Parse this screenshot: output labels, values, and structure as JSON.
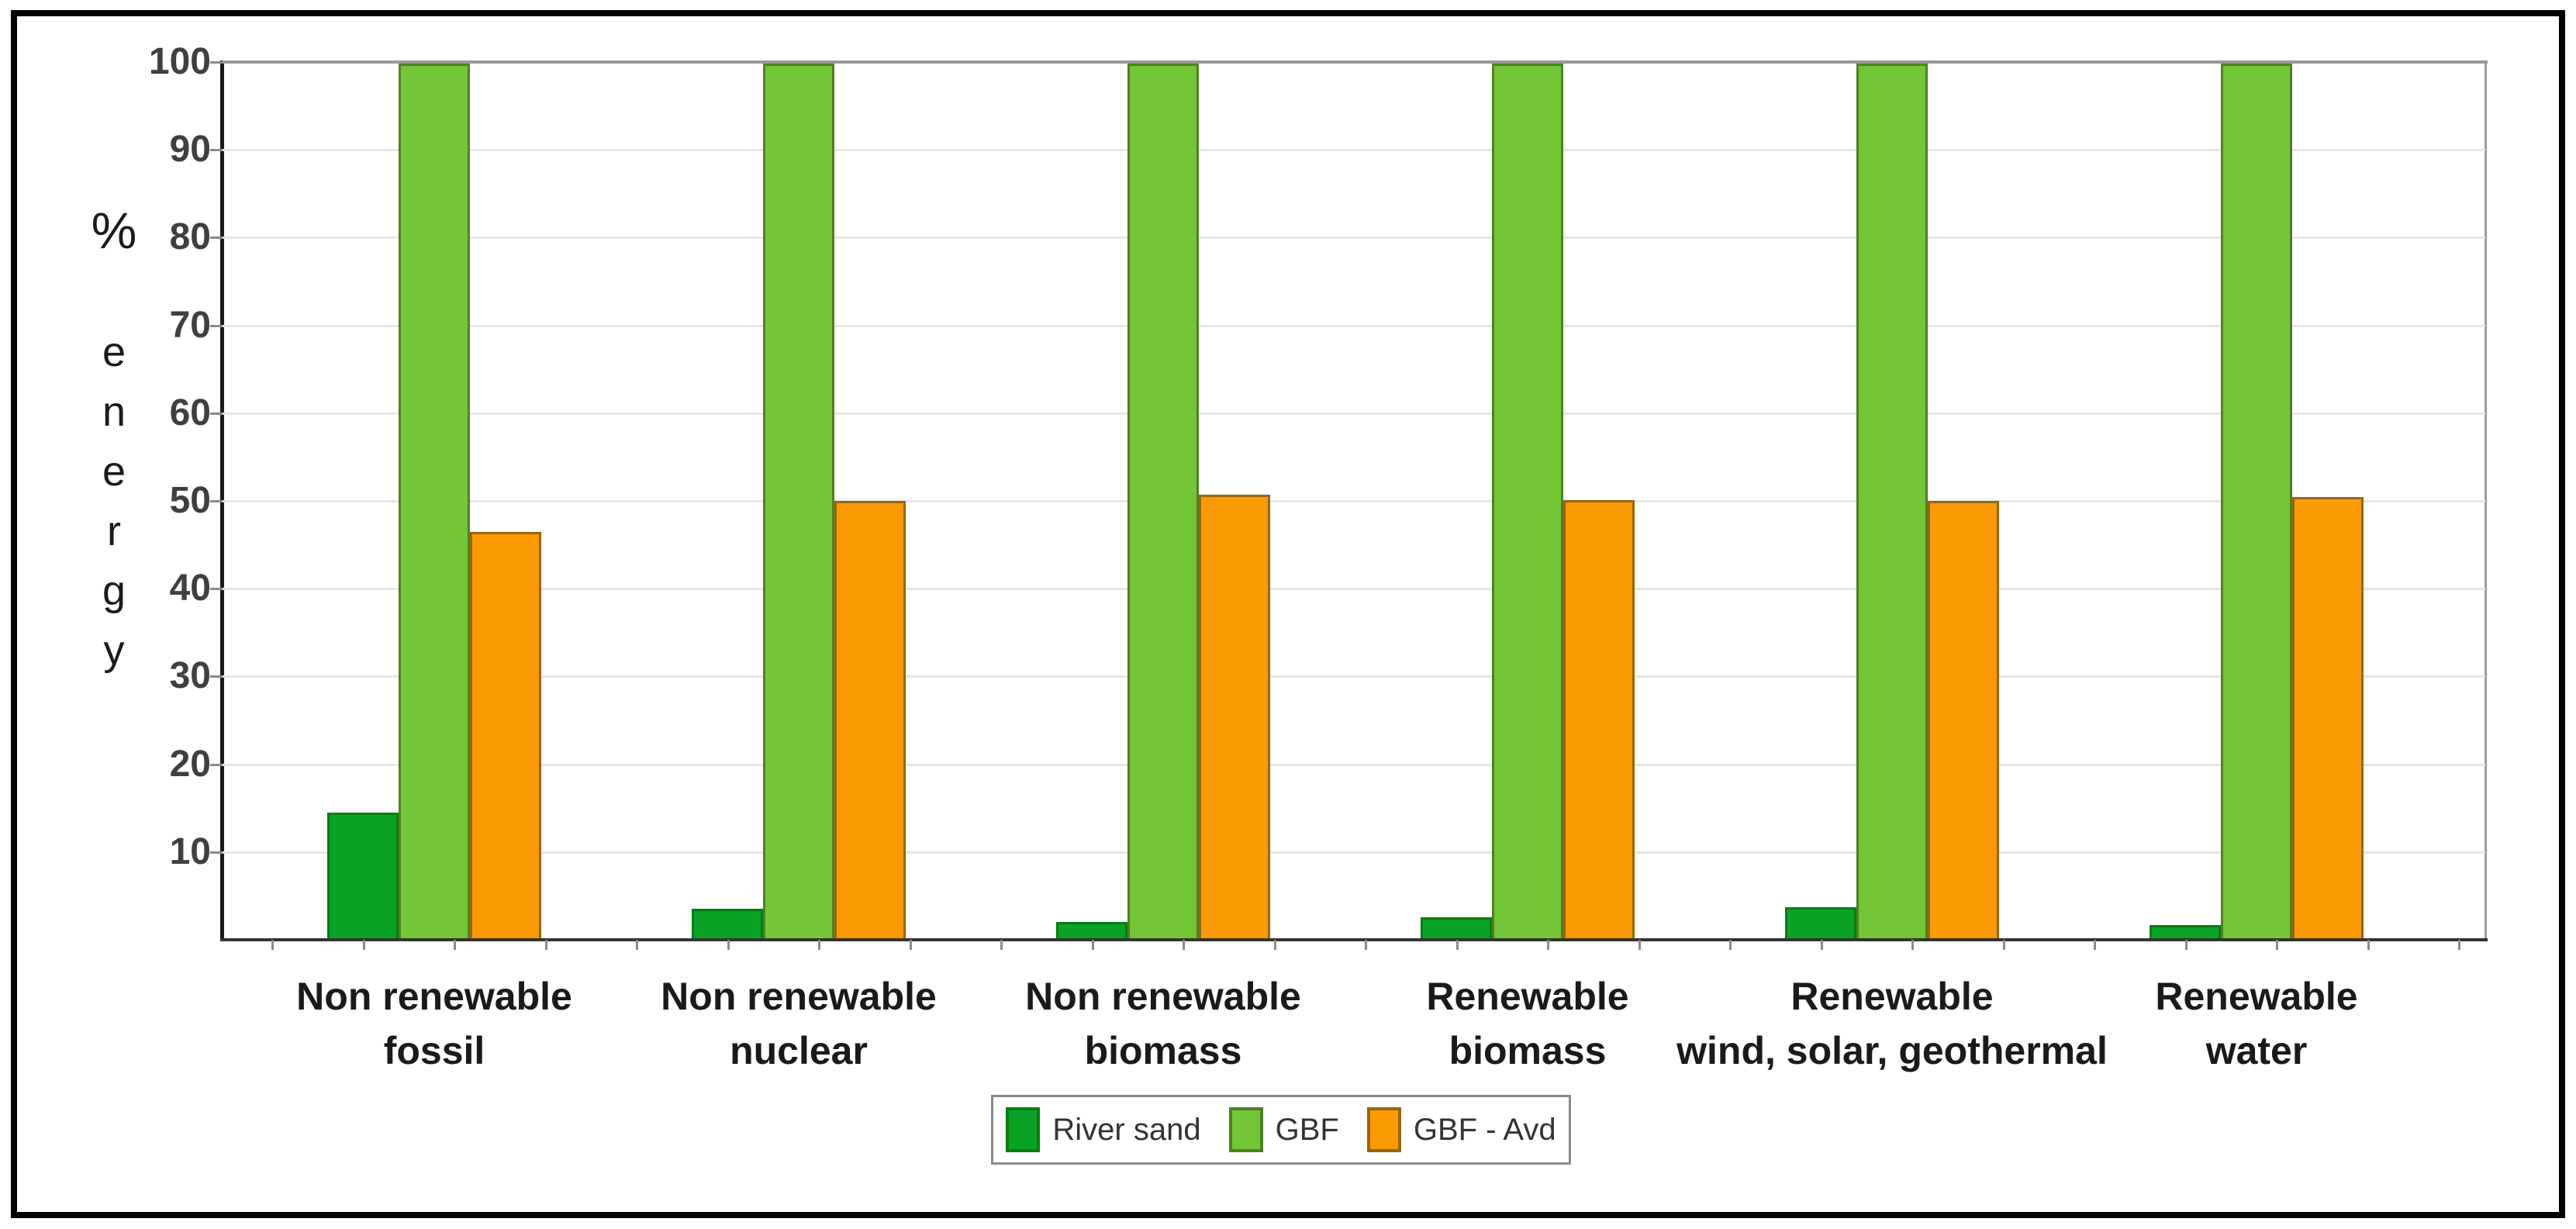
{
  "figure": {
    "background": "#FFFFFF",
    "border_color": "#000000"
  },
  "chart_data": {
    "type": "bar",
    "title": "",
    "ylabel": "% energy",
    "ylabel_stacked": [
      "%",
      "e",
      "n",
      "e",
      "r",
      "g",
      "y"
    ],
    "xlabel": "",
    "ylim": [
      0,
      100
    ],
    "yticks": [
      100,
      90,
      80,
      70,
      60,
      50,
      40,
      30,
      20,
      10
    ],
    "grid": true,
    "legend_position": "bottom-center",
    "categories": [
      "Non renewable\nfossil",
      "Non renewable\nnuclear",
      "Non renewable\nbiomass",
      "Renewable\nbiomass",
      "Renewable\nwind, solar, geothermal",
      "Renewable\nwater"
    ],
    "series": [
      {
        "name": "River sand",
        "color": "#0AA327",
        "border_color": "#067D12",
        "values": [
          14.5,
          3.5,
          2.0,
          2.6,
          3.7,
          1.7
        ]
      },
      {
        "name": "GBF",
        "color": "#73C636",
        "border_color": "#508024",
        "values": [
          99.8,
          99.8,
          99.8,
          99.8,
          99.8,
          99.8
        ]
      },
      {
        "name": "GBF - Avd",
        "color": "#FB9A04",
        "border_color": "#97650E",
        "values": [
          46.5,
          50.0,
          50.7,
          50.1,
          50.0,
          50.4
        ]
      }
    ],
    "axis_colors": {
      "y_axis": "#1B1B1B",
      "x_axis": "#333333",
      "plot_top": "#999999",
      "plot_right": "#999999",
      "gridline": "#E7E7E7",
      "tick": "#8A8A8A",
      "tick_label": "#3F3F3F",
      "category_label": "#1A1A1A",
      "legend_border": "#8A8A8A",
      "legend_text": "#333333"
    }
  }
}
